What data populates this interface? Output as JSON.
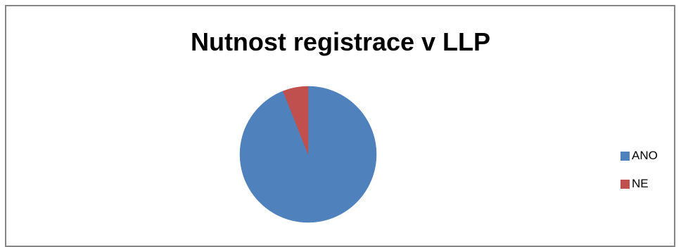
{
  "chart_data": {
    "type": "pie",
    "title": "Nutnost registrace v LLP",
    "categories": [
      "ANO",
      "NE"
    ],
    "values": [
      94,
      6
    ],
    "colors": [
      "#4F81BD",
      "#C0504D"
    ],
    "legend_position": "right"
  }
}
